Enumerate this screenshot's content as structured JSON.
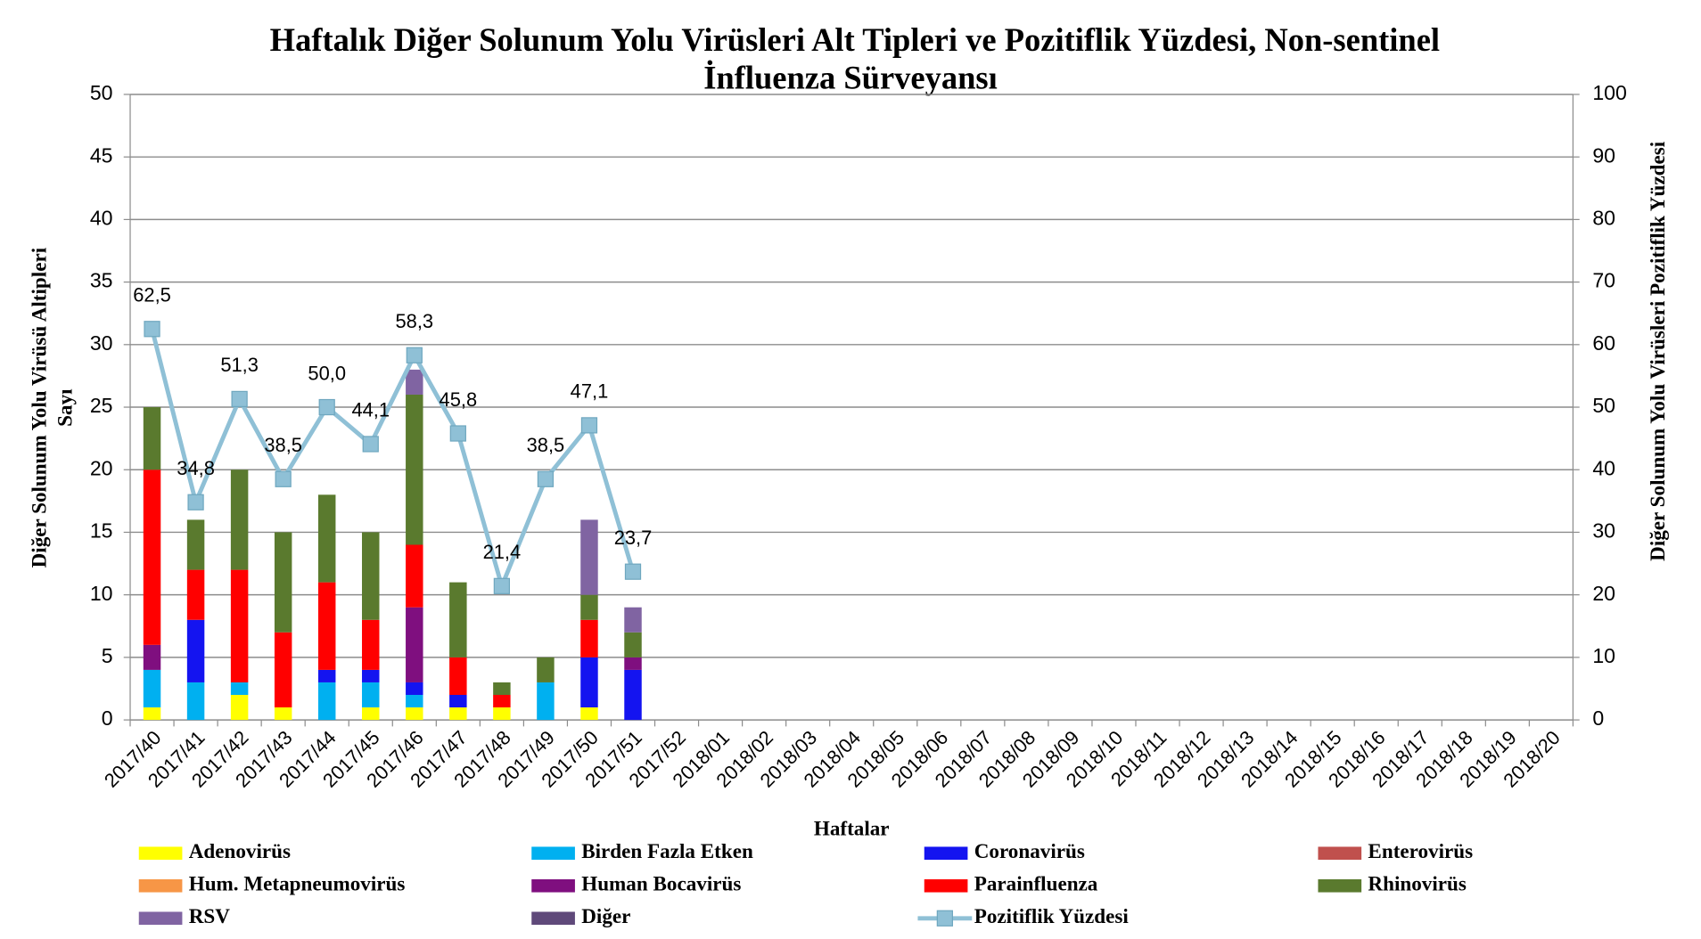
{
  "chart_data": {
    "type": "bar",
    "title": [
      "Haftalık Diğer Solunum Yolu Virüsleri Alt Tipleri ve Pozitiflik Yüzdesi, Non-sentinel",
      "İnfluenza Sürveyansı"
    ],
    "x_label": "Haftalar",
    "y_label": [
      "Diğer Solunum Yolu Virüsü Altipleri",
      "Sayı"
    ],
    "y2_label": "Diğer Solunum Yolu Virüsleri Pozitiflik Yüzdesi",
    "stacked": true,
    "grid": true,
    "legend": "bottom",
    "categories": [
      "2017/40",
      "2017/41",
      "2017/42",
      "2017/43",
      "2017/44",
      "2017/45",
      "2017/46",
      "2017/47",
      "2017/48",
      "2017/49",
      "2017/50",
      "2017/51",
      "2017/52",
      "2018/01",
      "2018/02",
      "2018/03",
      "2018/04",
      "2018/05",
      "2018/06",
      "2018/07",
      "2018/08",
      "2018/09",
      "2018/10",
      "2018/11",
      "2018/12",
      "2018/13",
      "2018/14",
      "2018/15",
      "2018/16",
      "2018/17",
      "2018/18",
      "2018/19",
      "2018/20"
    ],
    "ylim": [
      0,
      50
    ],
    "yticks": [
      0,
      5,
      10,
      15,
      20,
      25,
      30,
      35,
      40,
      45,
      50
    ],
    "y2lim": [
      0,
      100
    ],
    "y2ticks": [
      0,
      10,
      20,
      30,
      40,
      50,
      60,
      70,
      80,
      90,
      100
    ],
    "series": [
      {
        "name": "Adenovirüs",
        "color": "#ffff00",
        "values": [
          1,
          0,
          2,
          1,
          0,
          1,
          1,
          1,
          1,
          0,
          1,
          0,
          null,
          null,
          null,
          null,
          null,
          null,
          null,
          null,
          null,
          null,
          null,
          null,
          null,
          null,
          null,
          null,
          null,
          null,
          null,
          null,
          null
        ]
      },
      {
        "name": "Birden Fazla Etken",
        "color": "#00b0f0",
        "values": [
          3,
          3,
          1,
          0,
          3,
          2,
          1,
          0,
          0,
          3,
          0,
          0,
          null,
          null,
          null,
          null,
          null,
          null,
          null,
          null,
          null,
          null,
          null,
          null,
          null,
          null,
          null,
          null,
          null,
          null,
          null,
          null,
          null
        ]
      },
      {
        "name": "Coronavirüs",
        "color": "#1414f0",
        "values": [
          0,
          5,
          0,
          0,
          1,
          1,
          1,
          1,
          0,
          0,
          4,
          4,
          null,
          null,
          null,
          null,
          null,
          null,
          null,
          null,
          null,
          null,
          null,
          null,
          null,
          null,
          null,
          null,
          null,
          null,
          null,
          null,
          null
        ]
      },
      {
        "name": "Enterovirüs",
        "color": "#c0504d",
        "values": [
          0,
          0,
          0,
          0,
          0,
          0,
          0,
          0,
          0,
          0,
          0,
          0,
          null,
          null,
          null,
          null,
          null,
          null,
          null,
          null,
          null,
          null,
          null,
          null,
          null,
          null,
          null,
          null,
          null,
          null,
          null,
          null,
          null
        ]
      },
      {
        "name": "Hum. Metapneumovirüs",
        "color": "#f79646",
        "values": [
          0,
          0,
          0,
          0,
          0,
          0,
          0,
          0,
          0,
          0,
          0,
          0,
          null,
          null,
          null,
          null,
          null,
          null,
          null,
          null,
          null,
          null,
          null,
          null,
          null,
          null,
          null,
          null,
          null,
          null,
          null,
          null,
          null
        ]
      },
      {
        "name": "Human Bocavirüs",
        "color": "#7f0f7f",
        "values": [
          2,
          0,
          0,
          0,
          0,
          0,
          6,
          0,
          0,
          0,
          0,
          1,
          null,
          null,
          null,
          null,
          null,
          null,
          null,
          null,
          null,
          null,
          null,
          null,
          null,
          null,
          null,
          null,
          null,
          null,
          null,
          null,
          null
        ]
      },
      {
        "name": "Parainfluenza",
        "color": "#ff0000",
        "values": [
          14,
          4,
          9,
          6,
          7,
          4,
          5,
          3,
          1,
          0,
          3,
          0,
          null,
          null,
          null,
          null,
          null,
          null,
          null,
          null,
          null,
          null,
          null,
          null,
          null,
          null,
          null,
          null,
          null,
          null,
          null,
          null,
          null
        ]
      },
      {
        "name": "Rhinovirüs",
        "color": "#5a7a2e",
        "values": [
          5,
          4,
          8,
          8,
          7,
          7,
          12,
          6,
          1,
          2,
          2,
          2,
          null,
          null,
          null,
          null,
          null,
          null,
          null,
          null,
          null,
          null,
          null,
          null,
          null,
          null,
          null,
          null,
          null,
          null,
          null,
          null,
          null
        ]
      },
      {
        "name": "RSV",
        "color": "#8064a2",
        "values": [
          0,
          0,
          0,
          0,
          0,
          0,
          2,
          0,
          0,
          0,
          6,
          2,
          null,
          null,
          null,
          null,
          null,
          null,
          null,
          null,
          null,
          null,
          null,
          null,
          null,
          null,
          null,
          null,
          null,
          null,
          null,
          null,
          null
        ]
      },
      {
        "name": "Diğer",
        "color": "#5f497a",
        "values": [
          0,
          0,
          0,
          0,
          0,
          0,
          0,
          0,
          0,
          0,
          0,
          0,
          null,
          null,
          null,
          null,
          null,
          null,
          null,
          null,
          null,
          null,
          null,
          null,
          null,
          null,
          null,
          null,
          null,
          null,
          null,
          null,
          null
        ]
      },
      {
        "name": "Pozitiflik Yüzdesi",
        "type": "line",
        "axis": "y2",
        "color": "#8fc0d6",
        "values": [
          62.5,
          34.8,
          51.3,
          38.5,
          50.0,
          44.1,
          58.3,
          45.8,
          21.4,
          38.5,
          47.1,
          23.7,
          null,
          null,
          null,
          null,
          null,
          null,
          null,
          null,
          null,
          null,
          null,
          null,
          null,
          null,
          null,
          null,
          null,
          null,
          null,
          null,
          null
        ],
        "value_labels": [
          "62,5",
          "34,8",
          "51,3",
          "38,5",
          "50,0",
          "44,1",
          "58,3",
          "45,8",
          "21,4",
          "38,5",
          "47,1",
          "23,7",
          null,
          null,
          null,
          null,
          null,
          null,
          null,
          null,
          null,
          null,
          null,
          null,
          null,
          null,
          null,
          null,
          null,
          null,
          null,
          null,
          null
        ]
      }
    ]
  }
}
